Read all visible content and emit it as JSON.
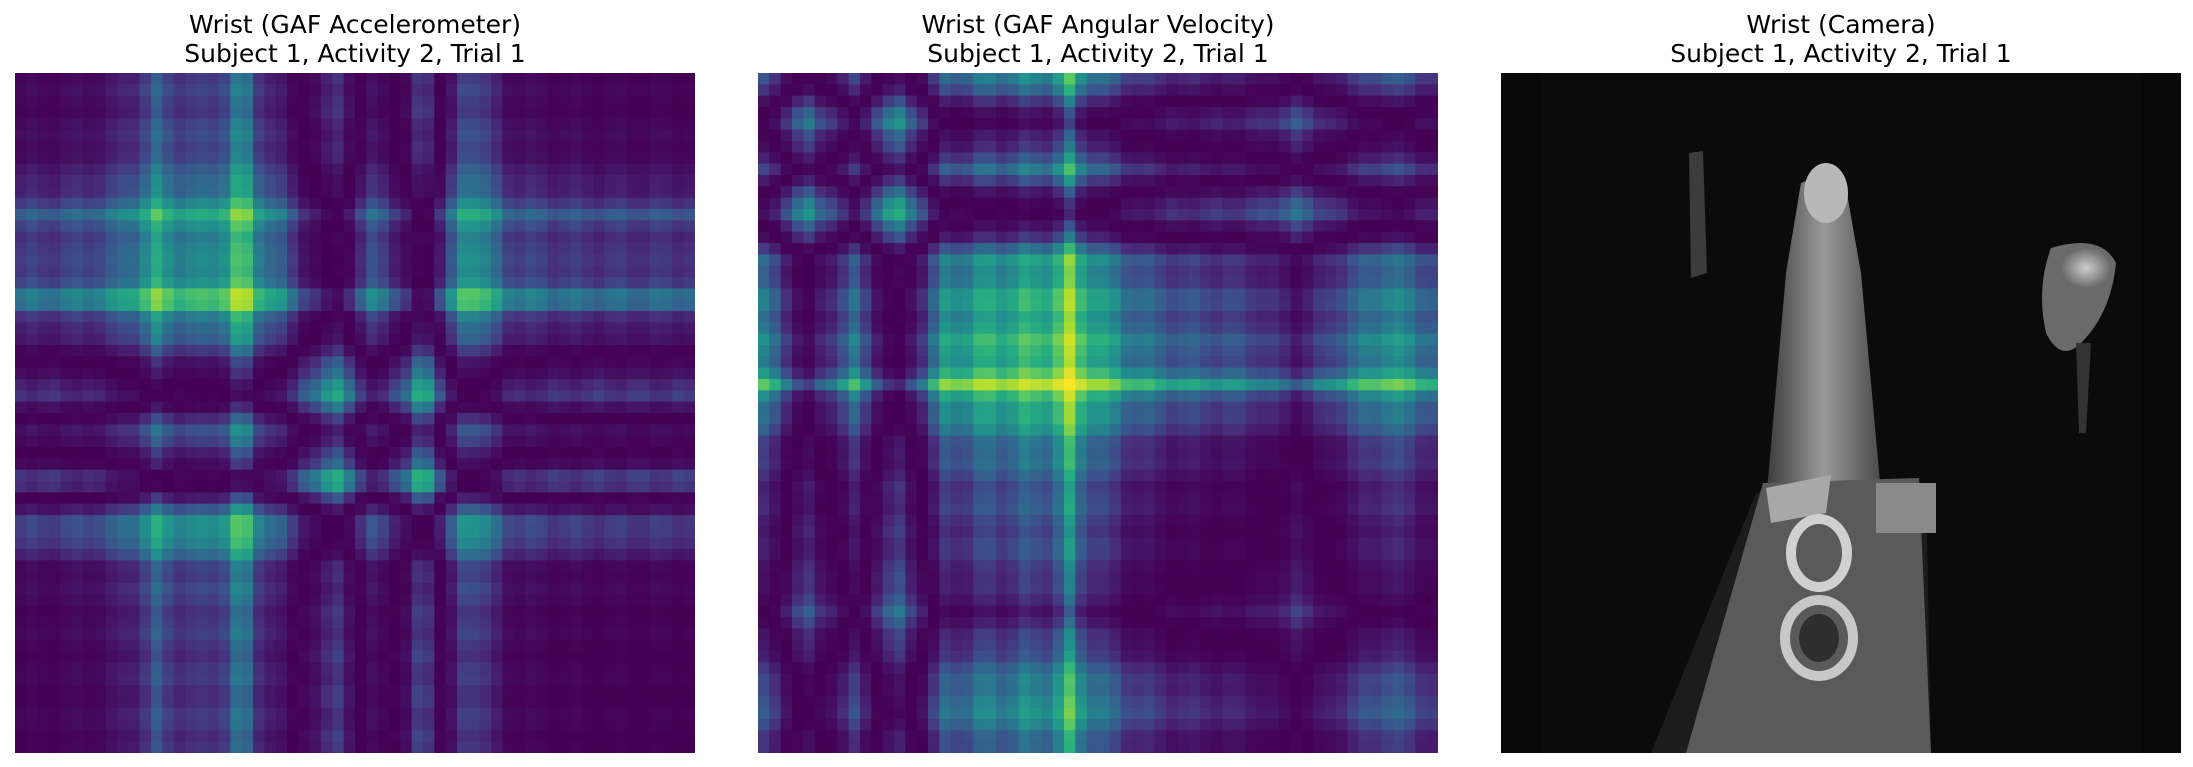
{
  "panels": [
    {
      "title_line1": "Wrist (GAF Accelerometer)",
      "title_line2": "Subject 1, Activity 2, Trial 1",
      "kind": "gaf-heatmap",
      "colormap": "viridis"
    },
    {
      "title_line1": "Wrist (GAF Angular Velocity)",
      "title_line2": "Subject 1, Activity 2, Trial 1",
      "kind": "gaf-heatmap",
      "colormap": "viridis"
    },
    {
      "title_line1": "Wrist (Camera)",
      "title_line2": "Subject 1, Activity 2, Trial 1",
      "kind": "grayscale-image",
      "colormap": "gray"
    }
  ],
  "chart_data": [
    {
      "type": "heatmap",
      "title": "Wrist (GAF Accelerometer)\nSubject 1, Activity 2, Trial 1",
      "grid": false,
      "axes_visible": false,
      "colormap": "viridis",
      "value_range": [
        -1,
        1
      ],
      "profile": [
        0.1,
        0.15,
        0.3,
        0.8,
        0.6,
        0.95,
        0.2,
        -0.9,
        0.4,
        -0.95,
        0.9,
        0.2,
        0.1,
        0.05,
        0.05,
        0.05
      ]
    },
    {
      "type": "heatmap",
      "title": "Wrist (GAF Angular Velocity)\nSubject 1, Activity 2, Trial 1",
      "grid": false,
      "axes_visible": false,
      "colormap": "viridis",
      "value_range": [
        -1,
        1
      ],
      "profile": [
        0.5,
        -0.7,
        0.4,
        -0.95,
        0.6,
        0.75,
        0.8,
        0.95,
        0.5,
        0.2,
        0.1,
        0.0,
        -0.4,
        0.2,
        0.6,
        0.3
      ]
    },
    {
      "type": "image",
      "title": "Wrist (Camera)\nSubject 1, Activity 2, Trial 1",
      "grid": false,
      "axes_visible": false,
      "colormap": "gray"
    }
  ],
  "colors": {
    "viridis_low": "#440154",
    "viridis_mid": "#21918c",
    "viridis_high": "#fde725",
    "camera_background": "#0b0b0b",
    "camera_highlight": "#cfcfcf"
  }
}
